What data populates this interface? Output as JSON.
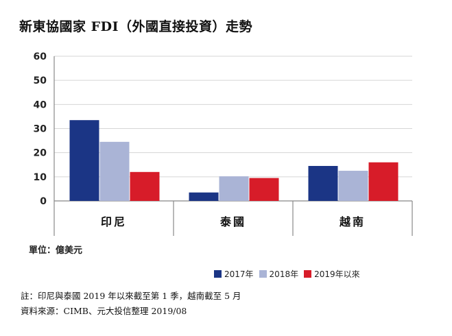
{
  "title": "新東協國家 FDI（外國直接投資）走勢",
  "unit_label": "單位：億美元",
  "notes": {
    "line1": "註：印尼與泰國 2019 年以來截至第 1 季，越南截至 5 月",
    "line2": "資料來源：CIMB、元大投信整理 2019/08"
  },
  "colors": {
    "s2017": "#1b3585",
    "s2018": "#aab4d6",
    "s2019": "#d71c29",
    "axis": "#888888",
    "grid": "#d5d5d5"
  },
  "chart_data": {
    "type": "bar",
    "categories": [
      "印尼",
      "泰國",
      "越南"
    ],
    "series": [
      {
        "name": "2017年",
        "color": "#1b3585",
        "values": [
          33.5,
          3.5,
          14.5
        ]
      },
      {
        "name": "2018年",
        "color": "#aab4d6",
        "values": [
          24.5,
          10.2,
          12.5
        ]
      },
      {
        "name": "2019年以來",
        "color": "#d71c29",
        "values": [
          12,
          9.5,
          16
        ]
      }
    ],
    "ylim": [
      0,
      60
    ],
    "yticks": [
      0,
      10,
      20,
      30,
      40,
      50,
      60
    ],
    "xlabel": "",
    "ylabel": "",
    "grid": true,
    "legend_position": "bottom-right"
  }
}
